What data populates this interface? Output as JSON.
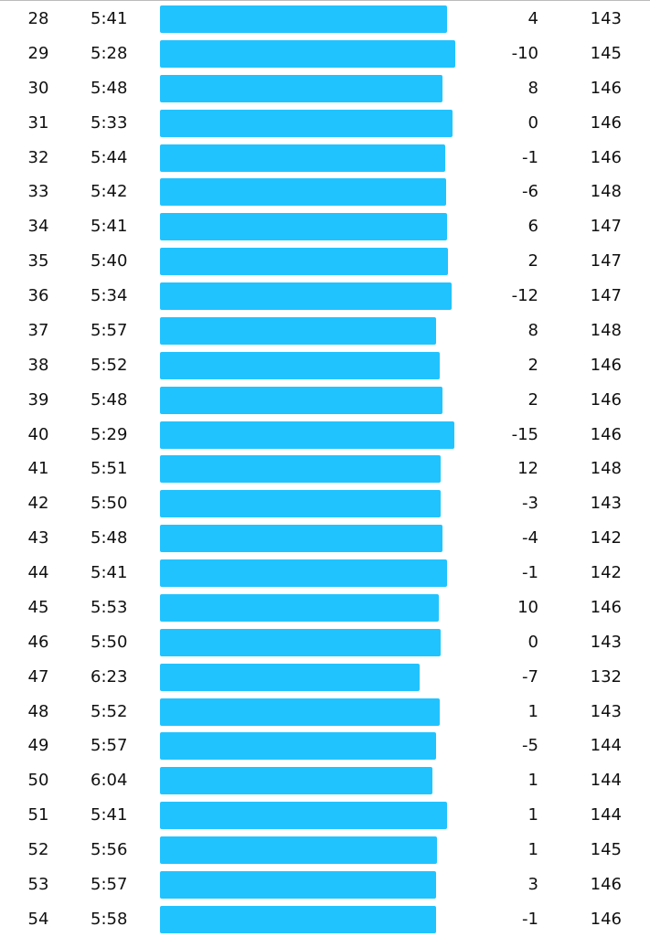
{
  "rows": [
    {
      "km": 28,
      "pace": "5:41",
      "elevation": 4,
      "hr": 143
    },
    {
      "km": 29,
      "pace": "5:28",
      "elevation": -10,
      "hr": 145
    },
    {
      "km": 30,
      "pace": "5:48",
      "elevation": 8,
      "hr": 146
    },
    {
      "km": 31,
      "pace": "5:33",
      "elevation": 0,
      "hr": 146
    },
    {
      "km": 32,
      "pace": "5:44",
      "elevation": -1,
      "hr": 146
    },
    {
      "km": 33,
      "pace": "5:42",
      "elevation": -6,
      "hr": 148
    },
    {
      "km": 34,
      "pace": "5:41",
      "elevation": 6,
      "hr": 147
    },
    {
      "km": 35,
      "pace": "5:40",
      "elevation": 2,
      "hr": 147
    },
    {
      "km": 36,
      "pace": "5:34",
      "elevation": -12,
      "hr": 147
    },
    {
      "km": 37,
      "pace": "5:57",
      "elevation": 8,
      "hr": 148
    },
    {
      "km": 38,
      "pace": "5:52",
      "elevation": 2,
      "hr": 146
    },
    {
      "km": 39,
      "pace": "5:48",
      "elevation": 2,
      "hr": 146
    },
    {
      "km": 40,
      "pace": "5:29",
      "elevation": -15,
      "hr": 146
    },
    {
      "km": 41,
      "pace": "5:51",
      "elevation": 12,
      "hr": 148
    },
    {
      "km": 42,
      "pace": "5:50",
      "elevation": -3,
      "hr": 143
    },
    {
      "km": 43,
      "pace": "5:48",
      "elevation": -4,
      "hr": 142
    },
    {
      "km": 44,
      "pace": "5:41",
      "elevation": -1,
      "hr": 142
    },
    {
      "km": 45,
      "pace": "5:53",
      "elevation": 10,
      "hr": 146
    },
    {
      "km": 46,
      "pace": "5:50",
      "elevation": 0,
      "hr": 143
    },
    {
      "km": 47,
      "pace": "6:23",
      "elevation": -7,
      "hr": 132
    },
    {
      "km": 48,
      "pace": "5:52",
      "elevation": 1,
      "hr": 143
    },
    {
      "km": 49,
      "pace": "5:57",
      "elevation": -5,
      "hr": 144
    },
    {
      "km": 50,
      "pace": "6:04",
      "elevation": 1,
      "hr": 144
    },
    {
      "km": 51,
      "pace": "5:41",
      "elevation": 1,
      "hr": 144
    },
    {
      "km": 52,
      "pace": "5:56",
      "elevation": 1,
      "hr": 145
    },
    {
      "km": 53,
      "pace": "5:57",
      "elevation": 3,
      "hr": 146
    },
    {
      "km": 54,
      "pace": "5:58",
      "elevation": -1,
      "hr": 146
    }
  ]
}
